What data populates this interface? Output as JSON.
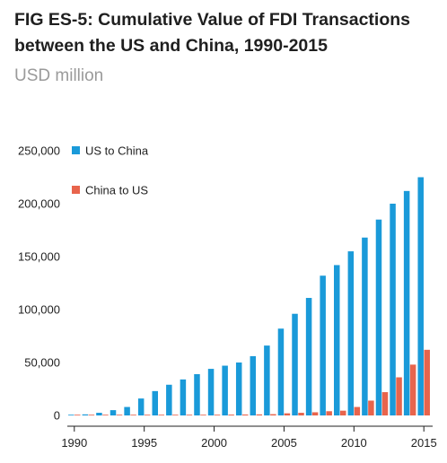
{
  "title": "FIG ES-5: Cumulative Value of FDI Transactions between the US and China, 1990-2015",
  "subtitle": "USD million",
  "chart_data": {
    "type": "bar",
    "title": "FIG ES-5: Cumulative Value of FDI Transactions between the US and China, 1990-2015",
    "subtitle": "USD million",
    "xlabel": "",
    "ylabel": "",
    "categories": [
      "1990",
      "1991",
      "1992",
      "1993",
      "1994",
      "1995",
      "1996",
      "1997",
      "1998",
      "1999",
      "2000",
      "2001",
      "2002",
      "2003",
      "2004",
      "2005",
      "2006",
      "2007",
      "2008",
      "2009",
      "2010",
      "2011",
      "2012",
      "2013",
      "2014",
      "2015"
    ],
    "x_tick_labels": [
      "1990",
      "1995",
      "2000",
      "2005",
      "2010",
      "2015"
    ],
    "y_tick_labels": [
      "0",
      "50,000",
      "100,000",
      "150,000",
      "200,000",
      "250,000"
    ],
    "ylim": [
      0,
      250000
    ],
    "y_ticks": [
      0,
      50000,
      100000,
      150000,
      200000,
      250000
    ],
    "grid": false,
    "legend_position": "top-left",
    "series": [
      {
        "name": "US to China",
        "color": "#1a9ad9",
        "values": [
          500,
          1000,
          2500,
          5000,
          8000,
          16000,
          23000,
          29000,
          34000,
          39000,
          44000,
          47000,
          50000,
          56000,
          66000,
          82000,
          96000,
          111000,
          132000,
          142000,
          155000,
          168000,
          185000,
          200000,
          212000,
          225000
        ]
      },
      {
        "name": "China to US",
        "color": "#e8644c",
        "values": [
          0,
          0,
          0,
          0,
          100,
          200,
          300,
          400,
          500,
          600,
          700,
          800,
          900,
          1000,
          1200,
          2000,
          2500,
          3000,
          4000,
          4500,
          8000,
          14000,
          22000,
          36000,
          48000,
          62000
        ]
      }
    ]
  }
}
